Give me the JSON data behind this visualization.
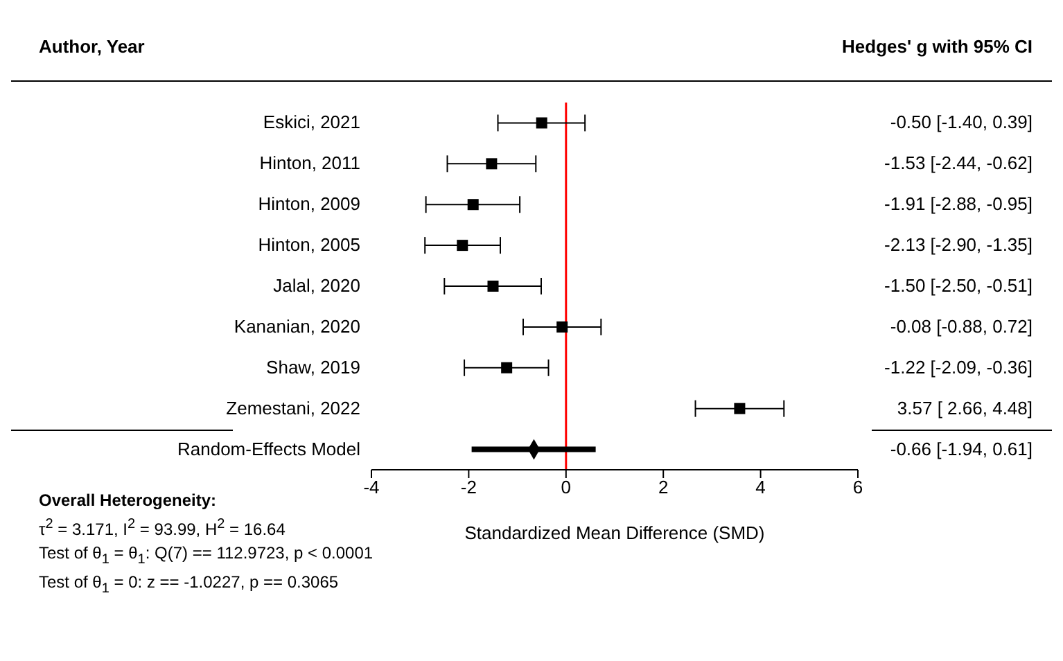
{
  "chart_data": {
    "type": "scatter",
    "orientation": "horizontal",
    "categories": [
      "Eskici, 2021",
      "Hinton, 2011",
      "Hinton, 2009",
      "Hinton, 2005",
      "Jalal, 2020",
      "Kananian, 2020",
      "Shaw, 2019",
      "Zemestani, 2022",
      "Random-Effects Model"
    ],
    "series": [
      {
        "type": "scatter",
        "marker": "square",
        "color": "#000000",
        "values": [
          -0.5,
          -1.53,
          -1.91,
          -2.13,
          -1.5,
          -0.08,
          -1.22,
          3.57,
          null
        ],
        "errors": [
          [
            -1.4,
            0.39
          ],
          [
            -2.44,
            -0.62
          ],
          [
            -2.88,
            -0.95
          ],
          [
            -2.9,
            -1.35
          ],
          [
            -2.5,
            -0.51
          ],
          [
            -0.88,
            0.72
          ],
          [
            -2.09,
            -0.36
          ],
          [
            2.66,
            4.48
          ],
          null
        ]
      },
      {
        "type": "scatter",
        "marker": "diamond",
        "color": "#000000",
        "values": [
          null,
          null,
          null,
          null,
          null,
          null,
          null,
          null,
          -0.66
        ],
        "errors": [
          null,
          null,
          null,
          null,
          null,
          null,
          null,
          null,
          [
            -1.94,
            0.61
          ]
        ]
      }
    ],
    "value_labels": [
      "-0.50 [-1.40,  0.39]",
      "-1.53 [-2.44, -0.62]",
      "-1.91 [-2.88, -0.95]",
      "-2.13 [-2.90, -1.35]",
      "-1.50 [-2.50, -0.51]",
      "-0.08 [-0.88,  0.72]",
      "-1.22 [-2.09, -0.36]",
      "3.57 [ 2.66,  4.48]",
      "-0.66 [-1.94,  0.61]"
    ],
    "xlim": [
      -4,
      6
    ],
    "xticks": [
      -4,
      -2,
      0,
      2,
      4,
      6
    ],
    "xlabel": "Standardized Mean Difference (SMD)",
    "ref_lines": [
      {
        "axis": "x",
        "value": 0,
        "color": "#ff0000"
      }
    ],
    "annotations": [
      "Author, Year",
      "Hedges' g with 95% CI",
      "Overall Heterogeneity:",
      "τ$^{2}$ = 3.171, I$^{2}$ = 93.99, H$^{2}$ = 16.64",
      "Test of θ$_{1}$ = θ$_{1}$: Q(7) == 112.9723,  p < 0.0001",
      "Test of θ$_{1}$ = 0: z == -1.0227,  p == 0.3065"
    ],
    "grid": false,
    "legend": false
  }
}
